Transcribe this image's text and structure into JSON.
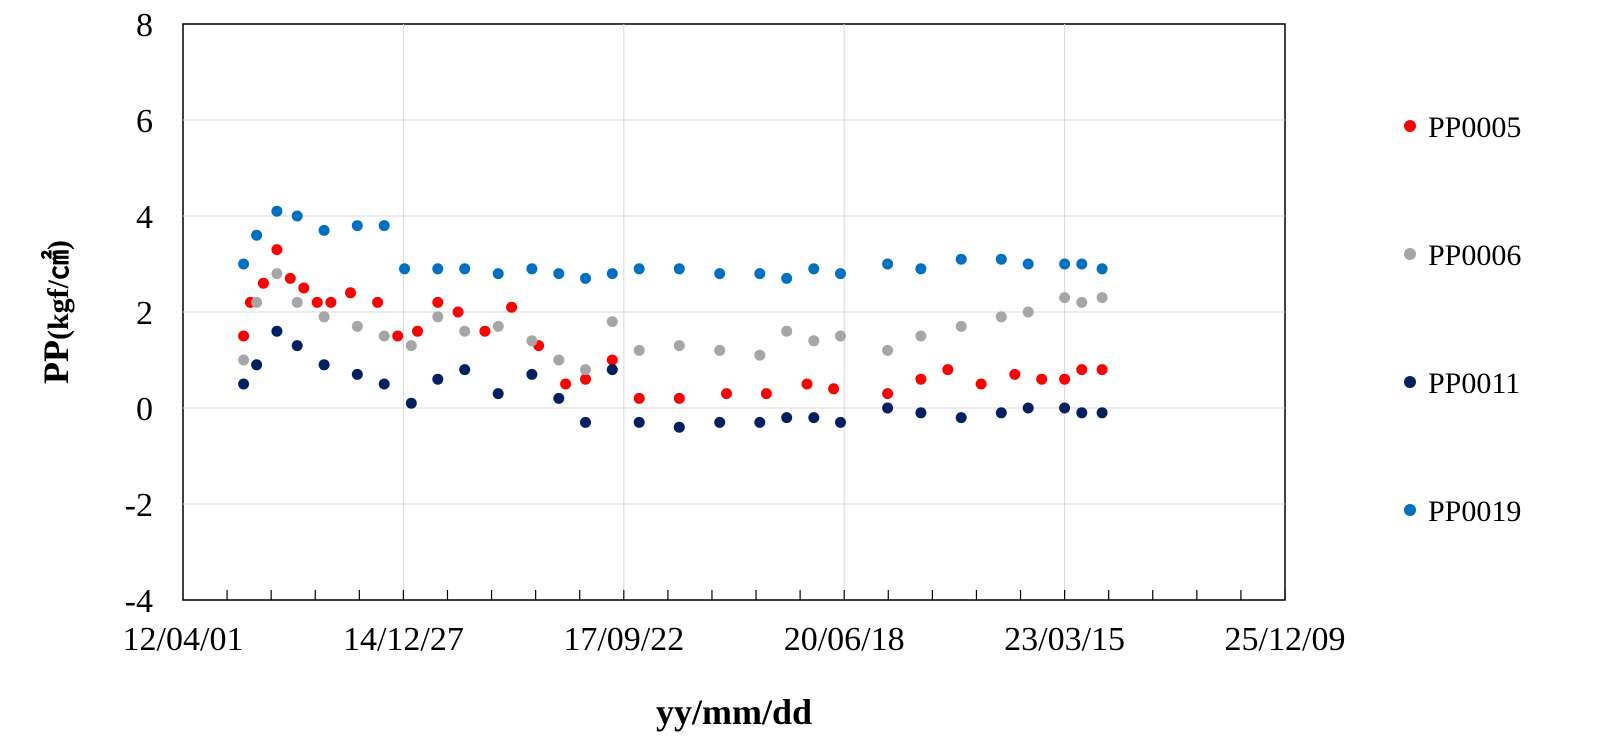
{
  "chart_data": {
    "type": "scatter",
    "title": "",
    "xlabel": "yy/mm/dd",
    "ylabel_main": "PP",
    "ylabel_unit": "(kgf/㎠)",
    "xlim": [
      "2012-04-01",
      "2025-12-09"
    ],
    "ylim": [
      -4,
      8
    ],
    "x_tick_labels": [
      "12/04/01",
      "14/12/27",
      "17/09/22",
      "20/06/18",
      "23/03/15",
      "25/12/09"
    ],
    "y_tick_labels": [
      "-4",
      "-2",
      "0",
      "2",
      "4",
      "6",
      "8"
    ],
    "grid": true,
    "legend_position": "right",
    "series": [
      {
        "name": "PP0005",
        "color": "#ff0000",
        "points": [
          [
            "2013-01-01",
            1.5
          ],
          [
            "2013-02-01",
            2.2
          ],
          [
            "2013-04-01",
            2.6
          ],
          [
            "2013-06-01",
            3.3
          ],
          [
            "2013-08-01",
            2.7
          ],
          [
            "2013-10-01",
            2.5
          ],
          [
            "2013-12-01",
            2.2
          ],
          [
            "2014-02-01",
            2.2
          ],
          [
            "2014-05-01",
            2.4
          ],
          [
            "2014-09-01",
            2.2
          ],
          [
            "2014-12-01",
            1.5
          ],
          [
            "2015-03-01",
            1.6
          ],
          [
            "2015-06-01",
            2.2
          ],
          [
            "2015-09-01",
            2.0
          ],
          [
            "2016-01-01",
            1.6
          ],
          [
            "2016-05-01",
            2.1
          ],
          [
            "2016-09-01",
            1.3
          ],
          [
            "2017-01-01",
            0.5
          ],
          [
            "2017-04-01",
            0.6
          ],
          [
            "2017-08-01",
            1.0
          ],
          [
            "2017-12-01",
            0.2
          ],
          [
            "2018-06-01",
            0.2
          ],
          [
            "2019-01-01",
            0.3
          ],
          [
            "2019-07-01",
            0.3
          ],
          [
            "2020-01-01",
            0.5
          ],
          [
            "2020-05-01",
            0.4
          ],
          [
            "2021-01-01",
            0.3
          ],
          [
            "2021-06-01",
            0.6
          ],
          [
            "2021-10-01",
            0.8
          ],
          [
            "2022-03-01",
            0.5
          ],
          [
            "2022-08-01",
            0.7
          ],
          [
            "2022-12-01",
            0.6
          ],
          [
            "2023-03-15",
            0.6
          ],
          [
            "2023-06-01",
            0.8
          ],
          [
            "2023-09-01",
            0.8
          ]
        ]
      },
      {
        "name": "PP0006",
        "color": "#a6a6a6",
        "points": [
          [
            "2013-01-01",
            1.0
          ],
          [
            "2013-03-01",
            2.2
          ],
          [
            "2013-06-01",
            2.8
          ],
          [
            "2013-09-01",
            2.2
          ],
          [
            "2014-01-01",
            1.9
          ],
          [
            "2014-06-01",
            1.7
          ],
          [
            "2014-10-01",
            1.5
          ],
          [
            "2015-02-01",
            1.3
          ],
          [
            "2015-06-01",
            1.9
          ],
          [
            "2015-10-01",
            1.6
          ],
          [
            "2016-03-01",
            1.7
          ],
          [
            "2016-08-01",
            1.4
          ],
          [
            "2016-12-01",
            1.0
          ],
          [
            "2017-04-01",
            0.8
          ],
          [
            "2017-08-01",
            1.8
          ],
          [
            "2017-12-01",
            1.2
          ],
          [
            "2018-06-01",
            1.3
          ],
          [
            "2018-12-01",
            1.2
          ],
          [
            "2019-06-01",
            1.1
          ],
          [
            "2019-10-01",
            1.6
          ],
          [
            "2020-02-01",
            1.4
          ],
          [
            "2020-06-01",
            1.5
          ],
          [
            "2021-01-01",
            1.2
          ],
          [
            "2021-06-01",
            1.5
          ],
          [
            "2021-12-01",
            1.7
          ],
          [
            "2022-06-01",
            1.9
          ],
          [
            "2022-10-01",
            2.0
          ],
          [
            "2023-03-15",
            2.3
          ],
          [
            "2023-06-01",
            2.2
          ],
          [
            "2023-09-01",
            2.3
          ]
        ]
      },
      {
        "name": "PP0011",
        "color": "#002060",
        "points": [
          [
            "2013-01-01",
            0.5
          ],
          [
            "2013-03-01",
            0.9
          ],
          [
            "2013-06-01",
            1.6
          ],
          [
            "2013-09-01",
            1.3
          ],
          [
            "2014-01-01",
            0.9
          ],
          [
            "2014-06-01",
            0.7
          ],
          [
            "2014-10-01",
            0.5
          ],
          [
            "2015-02-01",
            0.1
          ],
          [
            "2015-06-01",
            0.6
          ],
          [
            "2015-10-01",
            0.8
          ],
          [
            "2016-03-01",
            0.3
          ],
          [
            "2016-08-01",
            0.7
          ],
          [
            "2016-12-01",
            0.2
          ],
          [
            "2017-04-01",
            -0.3
          ],
          [
            "2017-08-01",
            0.8
          ],
          [
            "2017-12-01",
            -0.3
          ],
          [
            "2018-06-01",
            -0.4
          ],
          [
            "2018-12-01",
            -0.3
          ],
          [
            "2019-06-01",
            -0.3
          ],
          [
            "2019-10-01",
            -0.2
          ],
          [
            "2020-02-01",
            -0.2
          ],
          [
            "2020-06-01",
            -0.3
          ],
          [
            "2021-01-01",
            0.0
          ],
          [
            "2021-06-01",
            -0.1
          ],
          [
            "2021-12-01",
            -0.2
          ],
          [
            "2022-06-01",
            -0.1
          ],
          [
            "2022-10-01",
            0.0
          ],
          [
            "2023-03-15",
            0.0
          ],
          [
            "2023-06-01",
            -0.1
          ],
          [
            "2023-09-01",
            -0.1
          ]
        ]
      },
      {
        "name": "PP0019",
        "color": "#0070c0",
        "points": [
          [
            "2013-01-01",
            3.0
          ],
          [
            "2013-03-01",
            3.6
          ],
          [
            "2013-06-01",
            4.1
          ],
          [
            "2013-09-01",
            4.0
          ],
          [
            "2014-01-01",
            3.7
          ],
          [
            "2014-06-01",
            3.8
          ],
          [
            "2014-10-01",
            3.8
          ],
          [
            "2015-01-01",
            2.9
          ],
          [
            "2015-06-01",
            2.9
          ],
          [
            "2015-10-01",
            2.9
          ],
          [
            "2016-03-01",
            2.8
          ],
          [
            "2016-08-01",
            2.9
          ],
          [
            "2016-12-01",
            2.8
          ],
          [
            "2017-04-01",
            2.7
          ],
          [
            "2017-08-01",
            2.8
          ],
          [
            "2017-12-01",
            2.9
          ],
          [
            "2018-06-01",
            2.9
          ],
          [
            "2018-12-01",
            2.8
          ],
          [
            "2019-06-01",
            2.8
          ],
          [
            "2019-10-01",
            2.7
          ],
          [
            "2020-02-01",
            2.9
          ],
          [
            "2020-06-01",
            2.8
          ],
          [
            "2021-01-01",
            3.0
          ],
          [
            "2021-06-01",
            2.9
          ],
          [
            "2021-12-01",
            3.1
          ],
          [
            "2022-06-01",
            3.1
          ],
          [
            "2022-10-01",
            3.0
          ],
          [
            "2023-03-15",
            3.0
          ],
          [
            "2023-06-01",
            3.0
          ],
          [
            "2023-09-01",
            2.9
          ]
        ]
      }
    ]
  }
}
